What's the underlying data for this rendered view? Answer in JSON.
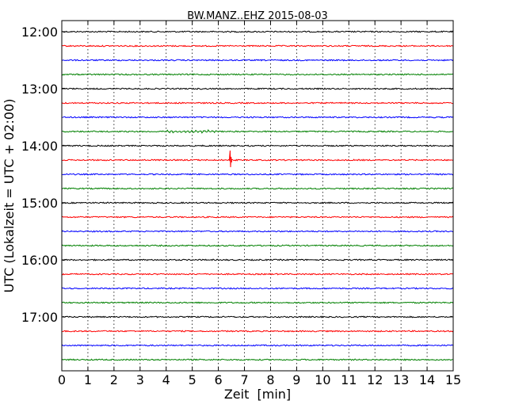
{
  "chart_data": {
    "type": "line",
    "title": "BW.MANZ..EHZ 2015-08-03",
    "xlabel": "Zeit  [min]",
    "ylabel": "UTC (Lokalzeit = UTC + 02:00)",
    "xlim": [
      0,
      15
    ],
    "x_ticks": [
      "0",
      "1",
      "2",
      "3",
      "4",
      "5",
      "6",
      "7",
      "8",
      "9",
      "10",
      "11",
      "12",
      "13",
      "14",
      "15"
    ],
    "y_tick_labels": [
      "12:00",
      "13:00",
      "14:00",
      "15:00",
      "16:00",
      "17:00"
    ],
    "grid": "vertical dotted lines at each minute",
    "line_colors": [
      "#000000",
      "#ff0000",
      "#0000ff",
      "#008000"
    ],
    "series": [
      {
        "values": [],
        "color": "#000000"
      },
      {
        "values": [],
        "color": "#ff0000"
      },
      {
        "values": [],
        "color": "#0000ff"
      },
      {
        "values": [],
        "color": "#008000"
      },
      {
        "values": [],
        "color": "#000000"
      },
      {
        "values": [],
        "color": "#ff0000"
      },
      {
        "values": [],
        "color": "#0000ff"
      },
      {
        "values": [],
        "color": "#008000"
      },
      {
        "values": [],
        "color": "#000000"
      },
      {
        "values": [],
        "color": "#ff0000"
      },
      {
        "values": [],
        "color": "#0000ff"
      },
      {
        "values": [],
        "color": "#008000"
      },
      {
        "values": [],
        "color": "#000000"
      },
      {
        "values": [],
        "color": "#ff0000"
      },
      {
        "values": [],
        "color": "#0000ff"
      },
      {
        "values": [],
        "color": "#008000"
      },
      {
        "values": [],
        "color": "#000000"
      },
      {
        "values": [],
        "color": "#ff0000"
      },
      {
        "values": [],
        "color": "#0000ff"
      },
      {
        "values": [],
        "color": "#008000"
      },
      {
        "values": [],
        "color": "#000000"
      },
      {
        "values": [],
        "color": "#ff0000"
      },
      {
        "values": [],
        "color": "#0000ff"
      },
      {
        "values": [],
        "color": "#008000"
      }
    ],
    "events": [
      {
        "trace_index": 9,
        "time_min": 6.45,
        "description": "spike"
      }
    ]
  }
}
